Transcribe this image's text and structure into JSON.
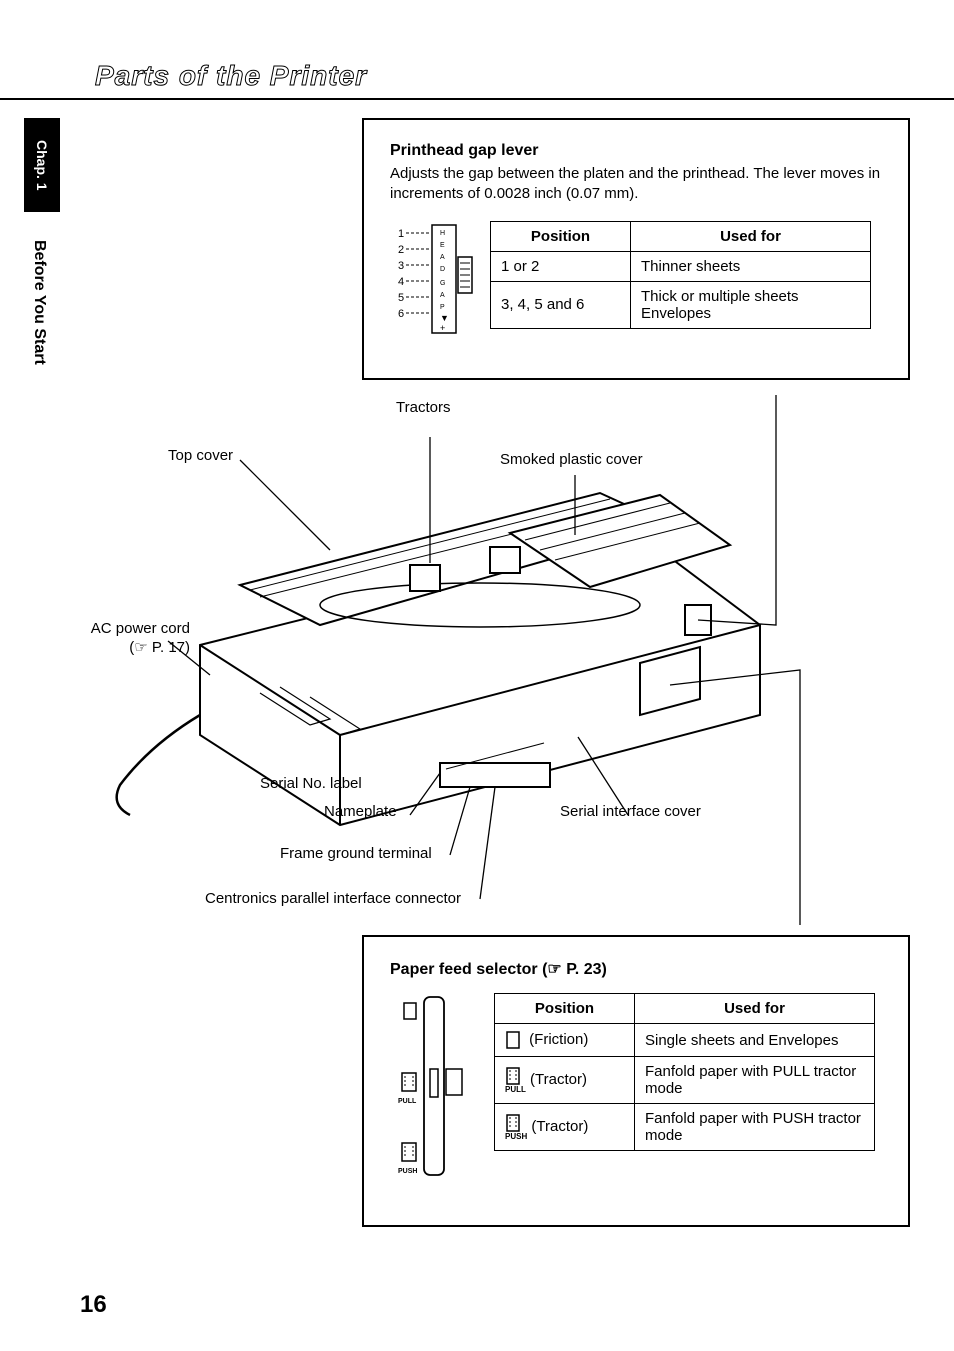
{
  "page": {
    "title": "Parts of the Printer",
    "number": "16"
  },
  "sideTabs": {
    "dark": "Chap. 1",
    "light": "Before You Start"
  },
  "boxTop": {
    "title": "Printhead gap lever",
    "desc": "Adjusts the gap between the platen and the printhead. The lever moves in increments of 0.0028 inch (0.07 mm).",
    "leverNumbers": [
      "1",
      "2",
      "3",
      "4",
      "5",
      "6"
    ],
    "table": {
      "headers": [
        "Position",
        "Used for"
      ],
      "rows": [
        [
          "1 or 2",
          "Thinner sheets"
        ],
        [
          "3, 4, 5 and 6",
          "Thick or multiple sheets Envelopes"
        ]
      ],
      "col1Width": 140,
      "col2Width": 240
    }
  },
  "boxBottom": {
    "title": "Paper feed selector  (☞  P. 23)",
    "table": {
      "headers": [
        "Position",
        "Used for"
      ],
      "rows": [
        {
          "iconType": "friction",
          "posLabel": "(Friction)",
          "usedFor": "Single sheets and Envelopes"
        },
        {
          "iconType": "tractor",
          "sub": "PULL",
          "posLabel": "(Tractor)",
          "usedFor": "Fanfold paper with PULL tractor mode"
        },
        {
          "iconType": "tractor",
          "sub": "PUSH",
          "posLabel": "(Tractor)",
          "usedFor": "Fanfold paper with PUSH tractor mode"
        }
      ],
      "col1Width": 140,
      "col2Width": 240
    },
    "selectorLabels": {
      "pull": "PULL",
      "push": "PUSH"
    }
  },
  "diagramLabels": {
    "tractors": "Tractors",
    "topCover": "Top cover",
    "smokedCover": "Smoked plastic cover",
    "acPower": "AC power cord",
    "acPowerRef": "(☞ P. 17)",
    "serialNo": "Serial No. label",
    "nameplate": "Nameplate",
    "frameGround": "Frame ground terminal",
    "centronics": "Centronics parallel interface connector",
    "serialIf": "Serial interface cover"
  },
  "style": {
    "textColor": "#000000",
    "bg": "#ffffff",
    "border": "#000000",
    "fontSizeBody": 15,
    "fontSizeTitle": 28
  }
}
